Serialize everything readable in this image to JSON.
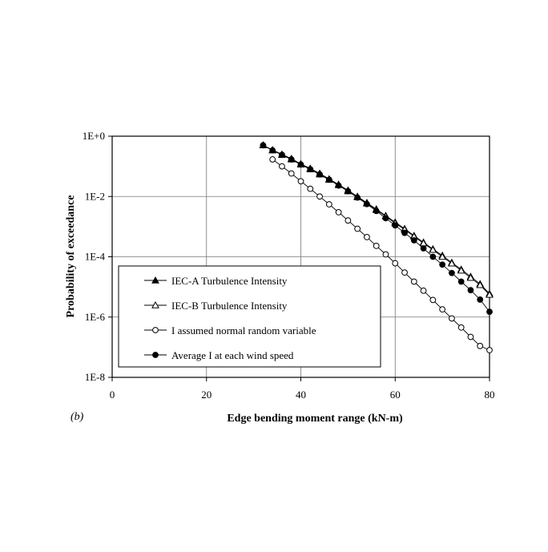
{
  "chart_data": {
    "type": "line",
    "panel_label": "(b)",
    "xlabel": "Edge bending moment range (kN-m)",
    "ylabel": "Probability of exceedance",
    "xlim": [
      0,
      80
    ],
    "ylim": [
      1e-08,
      1
    ],
    "y_scale": "log",
    "x_ticks": [
      0,
      20,
      40,
      60,
      80
    ],
    "x_tick_labels": [
      "0",
      "20",
      "40",
      "60",
      "80"
    ],
    "y_ticks": [
      1e-08,
      1e-06,
      0.0001,
      0.01,
      1
    ],
    "y_tick_labels": [
      "1E-8",
      "1E-6",
      "1E-4",
      "1E-2",
      "1E+0"
    ],
    "grid": true,
    "legend_position": "lower-left",
    "series": [
      {
        "name": "IEC-A Turbulence Intensity",
        "marker": "filled-triangle",
        "x": [
          32,
          34,
          36,
          38,
          40,
          42,
          44,
          46,
          48,
          50,
          52,
          54,
          56,
          58,
          60,
          62,
          64,
          66,
          68,
          70,
          72,
          74,
          76,
          78,
          80
        ],
        "y": [
          0.5,
          0.35,
          0.25,
          0.18,
          0.12,
          0.085,
          0.058,
          0.038,
          0.025,
          0.016,
          0.01,
          0.0062,
          0.0038,
          0.0023,
          0.0014,
          0.00085,
          0.0005,
          0.0003,
          0.00018,
          0.00011,
          6.4e-05,
          3.8e-05,
          2.2e-05,
          1.25e-05,
          6e-06
        ]
      },
      {
        "name": "IEC-B Turbulence Intensity",
        "marker": "open-triangle",
        "x": [
          32,
          34,
          36,
          38,
          40,
          42,
          44,
          46,
          48,
          50,
          52,
          54,
          56,
          58,
          60,
          62,
          64,
          66,
          68,
          70,
          72,
          74,
          76,
          78,
          80
        ],
        "y": [
          0.5,
          0.34,
          0.24,
          0.17,
          0.115,
          0.08,
          0.054,
          0.036,
          0.024,
          0.015,
          0.0095,
          0.0059,
          0.0036,
          0.0022,
          0.0013,
          0.0008,
          0.00047,
          0.00028,
          0.00017,
          0.0001,
          6e-05,
          3.5e-05,
          2e-05,
          1.15e-05,
          5.5e-06
        ]
      },
      {
        "name": "I assumed normal random variable",
        "marker": "open-circle",
        "x": [
          34,
          36,
          38,
          40,
          42,
          44,
          46,
          48,
          50,
          52,
          54,
          56,
          58,
          60,
          62,
          64,
          66,
          68,
          70,
          72,
          74,
          76,
          78,
          80
        ],
        "y": [
          0.17,
          0.1,
          0.058,
          0.032,
          0.018,
          0.01,
          0.0055,
          0.003,
          0.0016,
          0.00085,
          0.00045,
          0.00023,
          0.00012,
          6.1e-05,
          3e-05,
          1.5e-05,
          7.5e-06,
          3.7e-06,
          1.8e-06,
          9e-07,
          4.5e-07,
          2.2e-07,
          1.1e-07,
          8e-08
        ]
      },
      {
        "name": "Average I at each wind speed",
        "marker": "filled-circle",
        "x": [
          32,
          34,
          36,
          38,
          40,
          42,
          44,
          46,
          48,
          50,
          52,
          54,
          56,
          58,
          60,
          62,
          64,
          66,
          68,
          70,
          72,
          74,
          76,
          78,
          80
        ],
        "y": [
          0.5,
          0.34,
          0.24,
          0.17,
          0.115,
          0.08,
          0.054,
          0.036,
          0.023,
          0.015,
          0.0092,
          0.0056,
          0.0033,
          0.0019,
          0.0011,
          0.00062,
          0.00035,
          0.00019,
          0.0001,
          5.5e-05,
          2.9e-05,
          1.5e-05,
          7.8e-06,
          3.8e-06,
          1.5e-06
        ]
      }
    ]
  }
}
